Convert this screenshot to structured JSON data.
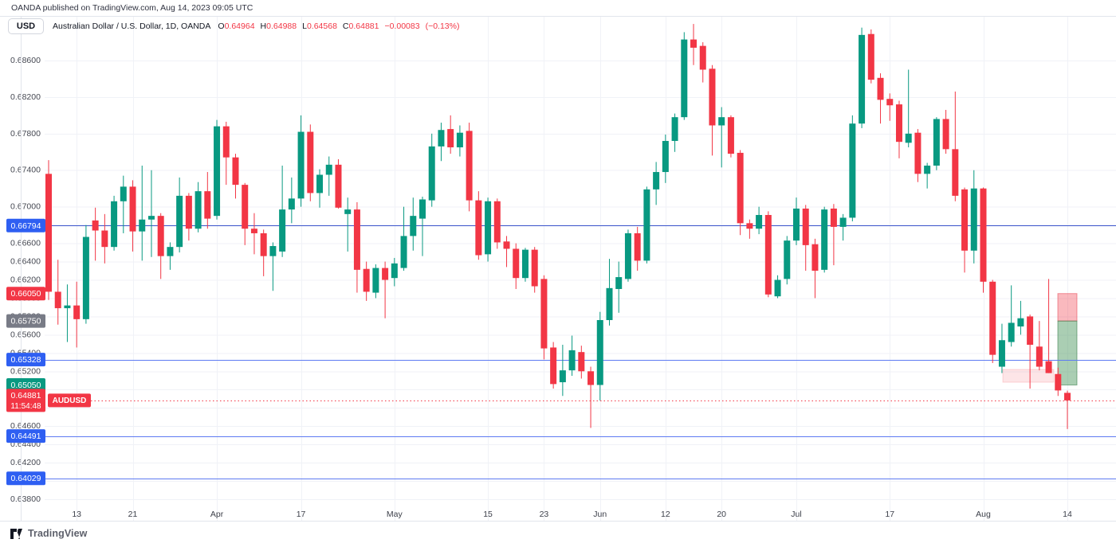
{
  "attribution": "OANDA published on TradingView.com, Aug 14, 2023 09:05 UTC",
  "header": {
    "currency_button": "USD",
    "symbol_title": "Australian Dollar / U.S. Dollar, 1D, OANDA",
    "ohlc": {
      "o": {
        "label": "O",
        "value": "0.64964"
      },
      "h": {
        "label": "H",
        "value": "0.64988"
      },
      "l": {
        "label": "L",
        "value": "0.64568"
      },
      "c": {
        "label": "C",
        "value": "0.64881"
      }
    },
    "change": "−0.00083",
    "change_pct": "(−0.13%)"
  },
  "footer": {
    "logo_text": "TradingView"
  },
  "chart_data": {
    "type": "candlestick",
    "symbol": "AUDUSD",
    "timeframe": "1D",
    "title": "Australian Dollar / U.S. Dollar, 1D, OANDA",
    "up_color": "#089981",
    "down_color": "#f23645",
    "grid_color": "#f0f2f7",
    "border_color": "#e2e5ec",
    "tick_label_color": "#454852",
    "time_label_color": "#3c3f49",
    "ylim": [
      0.6368,
      0.6908
    ],
    "price_ticks": [
      0.686,
      0.682,
      0.678,
      0.674,
      0.67,
      0.668,
      0.666,
      0.664,
      0.662,
      0.66,
      0.658,
      0.656,
      0.654,
      0.652,
      0.65,
      0.648,
      0.646,
      0.644,
      0.642,
      0.64,
      0.638
    ],
    "time_labels": [
      {
        "label": "13",
        "i": 3
      },
      {
        "label": "21",
        "i": 9
      },
      {
        "label": "Apr",
        "i": 18
      },
      {
        "label": "17",
        "i": 27
      },
      {
        "label": "May",
        "i": 37
      },
      {
        "label": "15",
        "i": 47
      },
      {
        "label": "23",
        "i": 53
      },
      {
        "label": "Jun",
        "i": 59
      },
      {
        "label": "12",
        "i": 66
      },
      {
        "label": "20",
        "i": 72
      },
      {
        "label": "Jul",
        "i": 80
      },
      {
        "label": "17",
        "i": 90
      },
      {
        "label": "Aug",
        "i": 100
      },
      {
        "label": "14",
        "i": 109
      }
    ],
    "levels": [
      {
        "label": "0.66794",
        "price": 0.66794,
        "badge": "#2e5ff2",
        "line": "#3b55cc"
      },
      {
        "label": "0.66050",
        "price": 0.6605,
        "badge": "#f23645",
        "line": null
      },
      {
        "label": "0.65750",
        "price": 0.6575,
        "badge": "#787b86",
        "line": null
      },
      {
        "label": "0.65328",
        "price": 0.65328,
        "badge": "#2e5ff2",
        "line": "#5e7bf2"
      },
      {
        "label": "0.65050",
        "price": 0.6505,
        "badge": "#089981",
        "line": null
      },
      {
        "label": "0.64491",
        "price": 0.64491,
        "badge": "#2e5ff2",
        "line": "#5e7bf2"
      },
      {
        "label": "0.64029",
        "price": 0.64029,
        "badge": "#2e5ff2",
        "line": "#5e7bf2"
      }
    ],
    "last_price": {
      "label": "0.64881",
      "value": 0.64881,
      "countdown": "11:54:48",
      "symbol_tag": "AUDUSD",
      "color": "#f23645"
    },
    "zones": [
      {
        "name": "base-pink-box",
        "x1": 1258,
        "x2": 1322,
        "p1": 0.6522,
        "p2": 0.6508,
        "fill": "rgba(242,54,69,0.13)",
        "stroke": "rgba(242,54,69,0.18)"
      },
      {
        "name": "supply-red-zone",
        "x1": 1327,
        "x2": 1351,
        "p1": 0.6605,
        "p2": 0.6575,
        "fill": "rgba(242,54,69,0.35)",
        "stroke": "rgba(229,70,84,0.55)"
      },
      {
        "name": "demand-green-zone",
        "x1": 1327,
        "x2": 1351,
        "p1": 0.6575,
        "p2": 0.6505,
        "fill": "rgba(67,146,86,0.45)",
        "stroke": "rgba(47,120,66,0.55)"
      }
    ],
    "candles": [
      [
        0.6736,
        0.6751,
        0.6598,
        0.6607
      ],
      [
        0.6607,
        0.6642,
        0.6571,
        0.6589
      ],
      [
        0.6589,
        0.6615,
        0.6552,
        0.6592
      ],
      [
        0.6592,
        0.6618,
        0.6546,
        0.6577
      ],
      [
        0.6577,
        0.668,
        0.6572,
        0.6667
      ],
      [
        0.6685,
        0.6699,
        0.6641,
        0.6674
      ],
      [
        0.6674,
        0.6692,
        0.6638,
        0.6656
      ],
      [
        0.6656,
        0.6712,
        0.6652,
        0.6706
      ],
      [
        0.6706,
        0.6734,
        0.6671,
        0.6722
      ],
      [
        0.6722,
        0.6729,
        0.6651,
        0.6673
      ],
      [
        0.6673,
        0.6745,
        0.6641,
        0.6686
      ],
      [
        0.6686,
        0.674,
        0.6645,
        0.669
      ],
      [
        0.669,
        0.6693,
        0.6621,
        0.6646
      ],
      [
        0.6646,
        0.6661,
        0.6631,
        0.6656
      ],
      [
        0.6656,
        0.6732,
        0.665,
        0.6712
      ],
      [
        0.6712,
        0.6715,
        0.6663,
        0.6676
      ],
      [
        0.6676,
        0.6727,
        0.6672,
        0.6717
      ],
      [
        0.6717,
        0.6738,
        0.6676,
        0.6687
      ],
      [
        0.669,
        0.6795,
        0.6686,
        0.6788
      ],
      [
        0.6788,
        0.6793,
        0.6724,
        0.6754
      ],
      [
        0.6754,
        0.6758,
        0.6709,
        0.6724
      ],
      [
        0.6724,
        0.6726,
        0.6658,
        0.6676
      ],
      [
        0.6676,
        0.6693,
        0.6648,
        0.6671
      ],
      [
        0.6671,
        0.6675,
        0.6624,
        0.6646
      ],
      [
        0.6646,
        0.6661,
        0.6608,
        0.6657
      ],
      [
        0.6651,
        0.6745,
        0.6645,
        0.6697
      ],
      [
        0.6697,
        0.6732,
        0.6682,
        0.6709
      ],
      [
        0.6709,
        0.68,
        0.67,
        0.6782
      ],
      [
        0.6782,
        0.679,
        0.6706,
        0.6715
      ],
      [
        0.6715,
        0.6741,
        0.6699,
        0.6735
      ],
      [
        0.6735,
        0.6755,
        0.6712,
        0.6746
      ],
      [
        0.6746,
        0.6752,
        0.6698,
        0.6699
      ],
      [
        0.6692,
        0.671,
        0.6651,
        0.6697
      ],
      [
        0.6697,
        0.6705,
        0.6606,
        0.6631
      ],
      [
        0.6632,
        0.664,
        0.6597,
        0.6607
      ],
      [
        0.6606,
        0.6637,
        0.66,
        0.6633
      ],
      [
        0.6633,
        0.664,
        0.6578,
        0.662
      ],
      [
        0.6622,
        0.6644,
        0.6613,
        0.6638
      ],
      [
        0.6633,
        0.67,
        0.663,
        0.6668
      ],
      [
        0.6668,
        0.671,
        0.6652,
        0.669
      ],
      [
        0.6687,
        0.6711,
        0.6646,
        0.6708
      ],
      [
        0.6707,
        0.678,
        0.67,
        0.6766
      ],
      [
        0.6766,
        0.6792,
        0.675,
        0.6784
      ],
      [
        0.6785,
        0.68,
        0.6758,
        0.6765
      ],
      [
        0.6765,
        0.6789,
        0.6755,
        0.6781
      ],
      [
        0.6783,
        0.6792,
        0.6695,
        0.6707
      ],
      [
        0.6707,
        0.6717,
        0.6642,
        0.6647
      ],
      [
        0.6648,
        0.671,
        0.664,
        0.6706
      ],
      [
        0.6706,
        0.6709,
        0.6654,
        0.6661
      ],
      [
        0.6662,
        0.6668,
        0.6634,
        0.6654
      ],
      [
        0.6654,
        0.666,
        0.661,
        0.6622
      ],
      [
        0.6622,
        0.6655,
        0.6618,
        0.6653
      ],
      [
        0.6653,
        0.6656,
        0.6606,
        0.6613
      ],
      [
        0.6621,
        0.6625,
        0.6533,
        0.6545
      ],
      [
        0.6546,
        0.6552,
        0.6501,
        0.6506
      ],
      [
        0.6508,
        0.6549,
        0.6493,
        0.6521
      ],
      [
        0.6521,
        0.6559,
        0.6515,
        0.6543
      ],
      [
        0.6541,
        0.6548,
        0.6512,
        0.652
      ],
      [
        0.652,
        0.6525,
        0.6458,
        0.6505
      ],
      [
        0.6505,
        0.6585,
        0.6488,
        0.6576
      ],
      [
        0.6576,
        0.6643,
        0.657,
        0.6611
      ],
      [
        0.661,
        0.664,
        0.6584,
        0.6623
      ],
      [
        0.6621,
        0.6675,
        0.6618,
        0.6671
      ],
      [
        0.6671,
        0.6678,
        0.663,
        0.6641
      ],
      [
        0.6641,
        0.6722,
        0.6638,
        0.6719
      ],
      [
        0.6719,
        0.6749,
        0.6702,
        0.6738
      ],
      [
        0.6738,
        0.6779,
        0.6726,
        0.6772
      ],
      [
        0.6772,
        0.6802,
        0.676,
        0.6798
      ],
      [
        0.6798,
        0.6891,
        0.6795,
        0.6883
      ],
      [
        0.6883,
        0.69,
        0.6855,
        0.6874
      ],
      [
        0.6876,
        0.688,
        0.6836,
        0.685
      ],
      [
        0.6851,
        0.6855,
        0.6756,
        0.6789
      ],
      [
        0.6789,
        0.6809,
        0.6743,
        0.6798
      ],
      [
        0.6798,
        0.68,
        0.6754,
        0.6758
      ],
      [
        0.6759,
        0.6762,
        0.6669,
        0.6682
      ],
      [
        0.6682,
        0.6686,
        0.6665,
        0.6676
      ],
      [
        0.6676,
        0.67,
        0.667,
        0.6691
      ],
      [
        0.6691,
        0.6695,
        0.6601,
        0.6604
      ],
      [
        0.6602,
        0.6625,
        0.66,
        0.662
      ],
      [
        0.6621,
        0.6668,
        0.6615,
        0.6663
      ],
      [
        0.6663,
        0.671,
        0.6658,
        0.6698
      ],
      [
        0.6698,
        0.6702,
        0.663,
        0.6658
      ],
      [
        0.6659,
        0.6665,
        0.66,
        0.663
      ],
      [
        0.6631,
        0.67,
        0.6628,
        0.6697
      ],
      [
        0.6698,
        0.6703,
        0.6636,
        0.6678
      ],
      [
        0.6678,
        0.6692,
        0.6663,
        0.6688
      ],
      [
        0.6688,
        0.68,
        0.6684,
        0.6791
      ],
      [
        0.6791,
        0.6896,
        0.6786,
        0.6888
      ],
      [
        0.6889,
        0.6894,
        0.6835,
        0.6839
      ],
      [
        0.6841,
        0.6846,
        0.6791,
        0.6817
      ],
      [
        0.6818,
        0.6824,
        0.6794,
        0.6811
      ],
      [
        0.6812,
        0.6816,
        0.6753,
        0.6771
      ],
      [
        0.677,
        0.685,
        0.6765,
        0.678
      ],
      [
        0.6781,
        0.6785,
        0.6727,
        0.6736
      ],
      [
        0.6736,
        0.6748,
        0.672,
        0.6745
      ],
      [
        0.6745,
        0.6798,
        0.674,
        0.6796
      ],
      [
        0.6796,
        0.6806,
        0.6758,
        0.6763
      ],
      [
        0.6763,
        0.6826,
        0.6706,
        0.6712
      ],
      [
        0.6719,
        0.6721,
        0.6628,
        0.6652
      ],
      [
        0.6652,
        0.674,
        0.6638,
        0.672
      ],
      [
        0.672,
        0.6721,
        0.6606,
        0.6618
      ],
      [
        0.6618,
        0.662,
        0.6529,
        0.6538
      ],
      [
        0.6525,
        0.6572,
        0.6518,
        0.6554
      ],
      [
        0.6552,
        0.6614,
        0.6547,
        0.6573
      ],
      [
        0.6569,
        0.6597,
        0.656,
        0.6578
      ],
      [
        0.658,
        0.6582,
        0.6501,
        0.6549
      ],
      [
        0.6547,
        0.6575,
        0.6521,
        0.6525
      ],
      [
        0.6531,
        0.6621,
        0.6518,
        0.6518
      ],
      [
        0.6517,
        0.6524,
        0.6493,
        0.6499
      ],
      [
        0.64964,
        0.64988,
        0.64568,
        0.64881
      ]
    ]
  }
}
